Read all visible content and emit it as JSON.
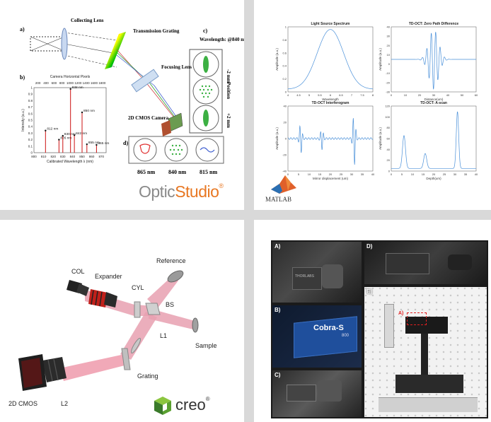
{
  "zemax": {
    "labels": {
      "a": "a)",
      "b": "b)",
      "c": "c)",
      "d": "d)",
      "collecting_lens": "Collecting Lens",
      "transmission_grating": "Transmission Grating",
      "focusing_lens": "Focusing Lens",
      "camera": "2D CMOS Camera",
      "wavelength": "Wavelength: @840 nm",
      "pos_minus": "-2 mm",
      "position": "Position",
      "pos_plus": "+2 mm",
      "d865": "865 nm",
      "d840": "840 nm",
      "d815": "815 nm"
    },
    "brand": {
      "optic": "Optic",
      "studio": "Studio",
      "reg": "®"
    },
    "spectrum": {
      "top_axis_title": "Camera Horizontal Pixels",
      "top_ticks": [
        "200",
        "400",
        "600",
        "800",
        "1000",
        "1200",
        "1400",
        "1600",
        "1800"
      ],
      "ylabel": "Intensity (a.u.)",
      "xlabel": "Calibrated Wavelength λ (nm)",
      "yticks": [
        "0",
        "0.1",
        "0.2",
        "0.3",
        "0.4",
        "0.5",
        "0.6",
        "0.7",
        "0.8",
        "0.9",
        "1"
      ],
      "xticks": [
        "800",
        "810",
        "820",
        "830",
        "840",
        "850",
        "860",
        "870"
      ],
      "peaks": [
        {
          "label": "812 nm",
          "wl": 812,
          "val": 0.34
        },
        {
          "label": "826 nm",
          "wl": 826,
          "val": 0.2
        },
        {
          "label": "830 nm",
          "wl": 830,
          "val": 0.26
        },
        {
          "label": "838 nm",
          "wl": 838,
          "val": 0.98
        },
        {
          "label": "842 nm",
          "wl": 842,
          "val": 0.27
        },
        {
          "label": "850 nm",
          "wl": 850,
          "val": 0.62
        },
        {
          "label": "855 nm",
          "wl": 855,
          "val": 0.13
        },
        {
          "label": "865 nm",
          "wl": 865,
          "val": 0.12
        }
      ]
    }
  },
  "matlab": {
    "plots": [
      {
        "title": "Light Source Spectrum",
        "xlabel": "Wavelength",
        "ylabel": "Amplitude (a.u.)",
        "xticks": [
          "4",
          "4.5",
          "5",
          "5.5",
          "6",
          "6.5",
          "7",
          "7.5",
          "8"
        ],
        "yticks": [
          "0",
          "0.2",
          "0.4",
          "0.6",
          "0.8",
          "1"
        ]
      },
      {
        "title": "TD-OCT: Zero Path Difference",
        "xlabel": "Distance(um)",
        "ylabel": "Amplitude (a.u.)",
        "xticks": [
          "0",
          "10",
          "20",
          "30",
          "40",
          "50",
          "60"
        ],
        "yticks": [
          "-30",
          "-20",
          "-10",
          "0",
          "10",
          "20",
          "30",
          "40"
        ]
      },
      {
        "title": "TD-OCT Interferogram",
        "xlabel": "Mirror displacement (um)",
        "ylabel": "Amplitude (a.u.)",
        "xticks": [
          "0",
          "5",
          "10",
          "15",
          "20",
          "25",
          "30",
          "35",
          "40"
        ],
        "yticks": [
          "-40",
          "-20",
          "0",
          "20",
          "40"
        ]
      },
      {
        "title": "TD-OCT: A-scan",
        "xlabel": "Depth(um)",
        "ylabel": "Amplitude (a.u.)",
        "xticks": [
          "0",
          "5",
          "10",
          "15",
          "20",
          "25",
          "30",
          "35",
          "40"
        ],
        "yticks": [
          "0",
          "20",
          "40",
          "60",
          "80",
          "100",
          "120"
        ]
      }
    ],
    "brand": "MATLAB"
  },
  "creo": {
    "labels": {
      "col": "COL",
      "expander": "Expander",
      "cyl": "CYL",
      "reference": "Reference",
      "bs": "BS",
      "l1": "L1",
      "sample": "Sample",
      "cmos": "2D CMOS",
      "l2": "L2",
      "grating": "Grating"
    },
    "brand": "creo",
    "reg": "®"
  },
  "photos": {
    "a": "A)",
    "b": "B)",
    "c": "C)",
    "d": "D)",
    "e": "E)",
    "cobra": "Cobra-S",
    "cobra_sub": "800",
    "thorlabs": "THORLABS",
    "red_label": "A)",
    "colors": {
      "background": "#1a1a1a",
      "blue": "#1f4f9c"
    }
  }
}
